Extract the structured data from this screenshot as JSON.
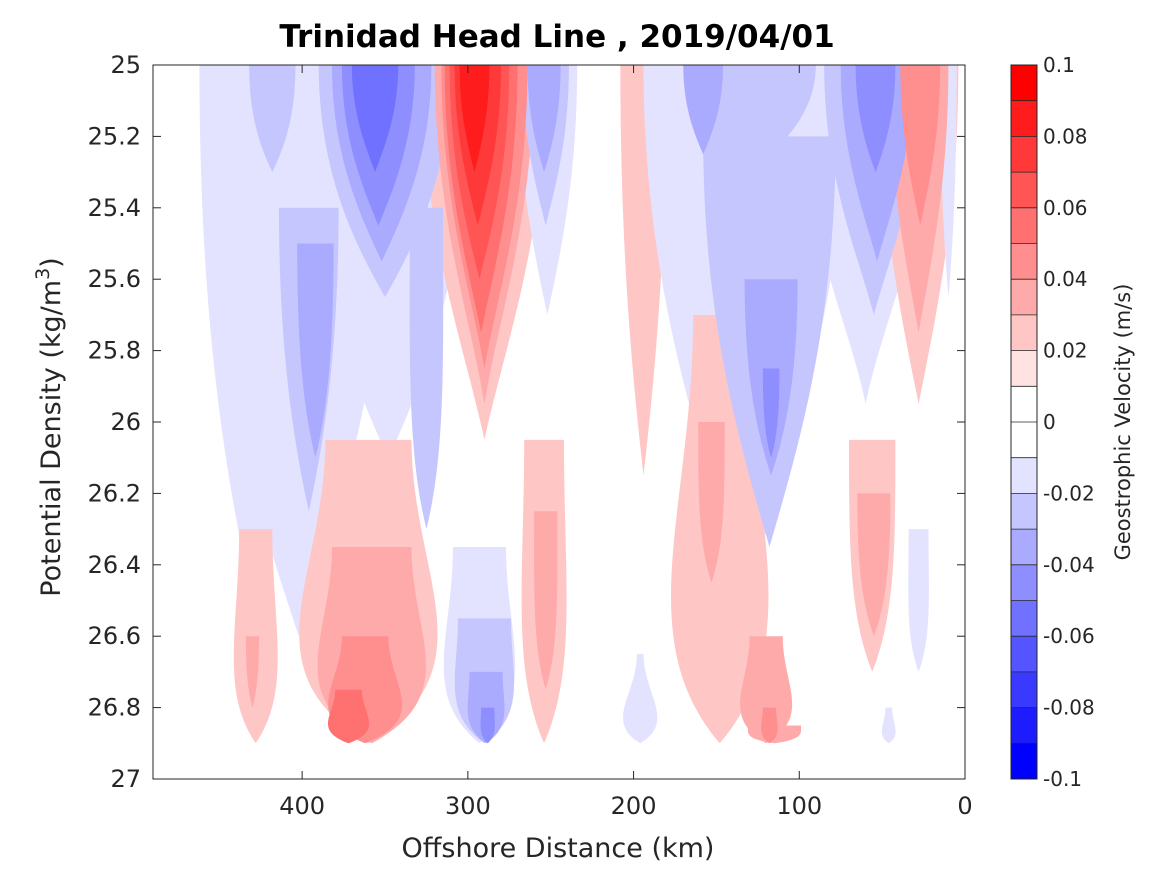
{
  "chart_data": {
    "type": "heatmap",
    "subtype": "filled-contour",
    "title": "Trinidad Head Line , 2019/04/01",
    "xlabel": "Offshore Distance (km)",
    "ylabel": "Potential Density (kg/m",
    "ylabel_sup": "3",
    "ylabel_end": ")",
    "x_axis": {
      "reversed": true,
      "xlim": [
        490,
        0
      ],
      "ticks": [
        400,
        300,
        200,
        100,
        0
      ],
      "tick_labels": [
        "400",
        "300",
        "200",
        "100",
        "0"
      ]
    },
    "y_axis": {
      "reversed": true,
      "ylim": [
        25,
        27
      ],
      "ticks": [
        25,
        25.2,
        25.4,
        25.6,
        25.8,
        26,
        26.2,
        26.4,
        26.6,
        26.8,
        27
      ],
      "tick_labels": [
        "25",
        "25.2",
        "25.4",
        "25.6",
        "25.8",
        "26",
        "26.2",
        "26.4",
        "26.6",
        "26.8",
        "27"
      ]
    },
    "colorbar": {
      "label": "Geostrophic Velocity (m/s)",
      "range": [
        -0.1,
        0.1
      ],
      "ticks": [
        0.1,
        0.08,
        0.06,
        0.04,
        0.02,
        0,
        -0.02,
        -0.04,
        -0.06,
        -0.08,
        -0.1
      ],
      "tick_labels": [
        "0.1",
        "0.08",
        "0.06",
        "0.04",
        "0.02",
        "0",
        "-0.02",
        "-0.04",
        "-0.06",
        "-0.08",
        "-0.1"
      ],
      "levels": [
        0.09,
        0.08,
        0.07,
        0.06,
        0.05,
        0.04,
        0.03,
        0.02,
        0.01,
        0,
        -0.01,
        -0.02,
        -0.03,
        -0.04,
        -0.05,
        -0.06,
        -0.07,
        -0.08,
        -0.09,
        -0.1
      ],
      "colors": [
        "#ff0000",
        "#ff1c1c",
        "#ff3939",
        "#ff5555",
        "#ff7171",
        "#ff8e8e",
        "#ffaaaa",
        "#ffc6c6",
        "#ffe3e3",
        "#ffffff",
        "#ffffff",
        "#e3e3ff",
        "#c6c6ff",
        "#aaaaff",
        "#8e8eff",
        "#7171ff",
        "#5555ff",
        "#3939ff",
        "#1c1cff",
        "#0000ff"
      ]
    },
    "grid": false,
    "features": [
      {
        "d": 427,
        "top": 25.0,
        "bot": 26.55,
        "v": -0.02,
        "wt": 35,
        "wb": 20
      },
      {
        "d": 418,
        "top": 25.0,
        "bot": 25.3,
        "v": -0.03,
        "wt": 14,
        "wb": 8
      },
      {
        "d": 402,
        "top": 25.2,
        "bot": 26.6,
        "v": -0.02,
        "wt": 55,
        "wb": 25
      },
      {
        "d": 396,
        "top": 25.4,
        "bot": 26.25,
        "v": -0.03,
        "wt": 18,
        "wb": 10
      },
      {
        "d": 392,
        "top": 25.5,
        "bot": 26.1,
        "v": -0.04,
        "wt": 11,
        "wb": 8
      },
      {
        "d": 348,
        "top": 25.0,
        "bot": 26.1,
        "v": -0.02,
        "wt": 50,
        "wb": 28
      },
      {
        "d": 350,
        "top": 25.0,
        "bot": 25.65,
        "v": -0.03,
        "wt": 40,
        "wb": 20
      },
      {
        "d": 352,
        "top": 25.0,
        "bot": 25.55,
        "v": -0.04,
        "wt": 30,
        "wb": 14
      },
      {
        "d": 354,
        "top": 25.0,
        "bot": 25.45,
        "v": -0.05,
        "wt": 22,
        "wb": 10
      },
      {
        "d": 356,
        "top": 25.0,
        "bot": 25.3,
        "v": -0.06,
        "wt": 14,
        "wb": 6
      },
      {
        "d": 325,
        "top": 25.4,
        "bot": 26.3,
        "v": -0.03,
        "wt": 10,
        "wb": 12
      },
      {
        "d": 290,
        "top": 25.0,
        "bot": 26.05,
        "v": 0.02,
        "wt": 38,
        "wb": 12
      },
      {
        "d": 290,
        "top": 25.0,
        "bot": 25.95,
        "v": 0.03,
        "wt": 30,
        "wb": 8
      },
      {
        "d": 290,
        "top": 25.0,
        "bot": 25.85,
        "v": 0.04,
        "wt": 26,
        "wb": 8
      },
      {
        "d": 292,
        "top": 25.0,
        "bot": 25.75,
        "v": 0.05,
        "wt": 22,
        "wb": 8
      },
      {
        "d": 293,
        "top": 25.0,
        "bot": 25.6,
        "v": 0.06,
        "wt": 18,
        "wb": 8
      },
      {
        "d": 294,
        "top": 25.0,
        "bot": 25.45,
        "v": 0.07,
        "wt": 14,
        "wb": 6
      },
      {
        "d": 296,
        "top": 25.0,
        "bot": 25.3,
        "v": 0.08,
        "wt": 9,
        "wb": 4
      },
      {
        "d": 252,
        "top": 25.0,
        "bot": 25.7,
        "v": -0.02,
        "wt": 18,
        "wb": 8
      },
      {
        "d": 253,
        "top": 25.0,
        "bot": 25.45,
        "v": -0.03,
        "wt": 14,
        "wb": 6
      },
      {
        "d": 254,
        "top": 25.0,
        "bot": 25.3,
        "v": -0.04,
        "wt": 10,
        "wb": 5
      },
      {
        "d": 194,
        "top": 25.0,
        "bot": 26.15,
        "v": 0.02,
        "wt": 14,
        "wb": 7
      },
      {
        "d": 132,
        "top": 25.0,
        "bot": 26.5,
        "v": -0.02,
        "wt": 62,
        "wb": 22
      },
      {
        "d": 118,
        "top": 25.2,
        "bot": 26.35,
        "v": -0.03,
        "wt": 40,
        "wb": 18
      },
      {
        "d": 117,
        "top": 25.6,
        "bot": 26.15,
        "v": -0.04,
        "wt": 16,
        "wb": 10
      },
      {
        "d": 117,
        "top": 25.85,
        "bot": 26.1,
        "v": -0.05,
        "wt": 5,
        "wb": 4
      },
      {
        "d": 130,
        "top": 25.0,
        "bot": 25.3,
        "v": -0.03,
        "wt": 40,
        "wb": 20
      },
      {
        "d": 158,
        "top": 25.0,
        "bot": 25.25,
        "v": -0.04,
        "wt": 12,
        "wb": 6
      },
      {
        "d": 60,
        "top": 25.0,
        "bot": 25.95,
        "v": -0.02,
        "wt": 42,
        "wb": 10
      },
      {
        "d": 55,
        "top": 25.0,
        "bot": 25.7,
        "v": -0.03,
        "wt": 30,
        "wb": 10
      },
      {
        "d": 53,
        "top": 25.0,
        "bot": 25.55,
        "v": -0.04,
        "wt": 22,
        "wb": 8
      },
      {
        "d": 54,
        "top": 25.0,
        "bot": 25.3,
        "v": -0.05,
        "wt": 12,
        "wb": 6
      },
      {
        "d": 28,
        "top": 25.0,
        "bot": 25.95,
        "v": 0.02,
        "wt": 24,
        "wb": 10
      },
      {
        "d": 28,
        "top": 25.0,
        "bot": 25.75,
        "v": 0.03,
        "wt": 18,
        "wb": 7
      },
      {
        "d": 27,
        "top": 25.0,
        "bot": 25.45,
        "v": 0.04,
        "wt": 12,
        "wb": 5
      },
      {
        "d": 10,
        "top": 25.0,
        "bot": 25.65,
        "v": -0.02,
        "wt": 5,
        "wb": 3
      },
      {
        "d": 360,
        "top": 26.05,
        "bot": 26.9,
        "v": 0.02,
        "wt": 26,
        "wb": 75
      },
      {
        "d": 358,
        "top": 26.35,
        "bot": 26.9,
        "v": 0.03,
        "wt": 24,
        "wb": 55
      },
      {
        "d": 362,
        "top": 26.6,
        "bot": 26.9,
        "v": 0.04,
        "wt": 14,
        "wb": 40
      },
      {
        "d": 372,
        "top": 26.75,
        "bot": 26.9,
        "v": 0.05,
        "wt": 8,
        "wb": 22
      },
      {
        "d": 428,
        "top": 26.3,
        "bot": 26.9,
        "v": 0.02,
        "wt": 10,
        "wb": 22
      },
      {
        "d": 430,
        "top": 26.6,
        "bot": 26.8,
        "v": 0.03,
        "wt": 4,
        "wb": 3
      },
      {
        "d": 293,
        "top": 26.35,
        "bot": 26.9,
        "v": -0.02,
        "wt": 16,
        "wb": 36
      },
      {
        "d": 290,
        "top": 26.55,
        "bot": 26.9,
        "v": -0.03,
        "wt": 16,
        "wb": 26
      },
      {
        "d": 289,
        "top": 26.7,
        "bot": 26.9,
        "v": -0.04,
        "wt": 10,
        "wb": 16
      },
      {
        "d": 288,
        "top": 26.8,
        "bot": 26.9,
        "v": -0.05,
        "wt": 4,
        "wb": 6
      },
      {
        "d": 254,
        "top": 26.05,
        "bot": 26.9,
        "v": 0.02,
        "wt": 12,
        "wb": 20
      },
      {
        "d": 253,
        "top": 26.25,
        "bot": 26.75,
        "v": 0.03,
        "wt": 7,
        "wb": 8
      },
      {
        "d": 196,
        "top": 26.65,
        "bot": 26.9,
        "v": -0.02,
        "wt": 2,
        "wb": 22
      },
      {
        "d": 148,
        "top": 25.7,
        "bot": 26.9,
        "v": 0.02,
        "wt": 16,
        "wb": 55
      },
      {
        "d": 153,
        "top": 26.0,
        "bot": 26.45,
        "v": 0.03,
        "wt": 8,
        "wb": 8
      },
      {
        "d": 115,
        "top": 26.85,
        "bot": 26.9,
        "v": 0.03,
        "wt": 16,
        "wb": 18
      },
      {
        "d": 120,
        "top": 26.6,
        "bot": 26.9,
        "v": 0.03,
        "wt": 10,
        "wb": 28
      },
      {
        "d": 118,
        "top": 26.8,
        "bot": 26.9,
        "v": 0.04,
        "wt": 4,
        "wb": 8
      },
      {
        "d": 56,
        "top": 26.05,
        "bot": 26.7,
        "v": 0.02,
        "wt": 14,
        "wb": 14
      },
      {
        "d": 55,
        "top": 26.2,
        "bot": 26.6,
        "v": 0.03,
        "wt": 10,
        "wb": 8
      },
      {
        "d": 28,
        "top": 26.3,
        "bot": 26.7,
        "v": -0.02,
        "wt": 6,
        "wb": 8
      },
      {
        "d": 46,
        "top": 26.8,
        "bot": 26.9,
        "v": -0.02,
        "wt": 2,
        "wb": 8
      }
    ]
  }
}
